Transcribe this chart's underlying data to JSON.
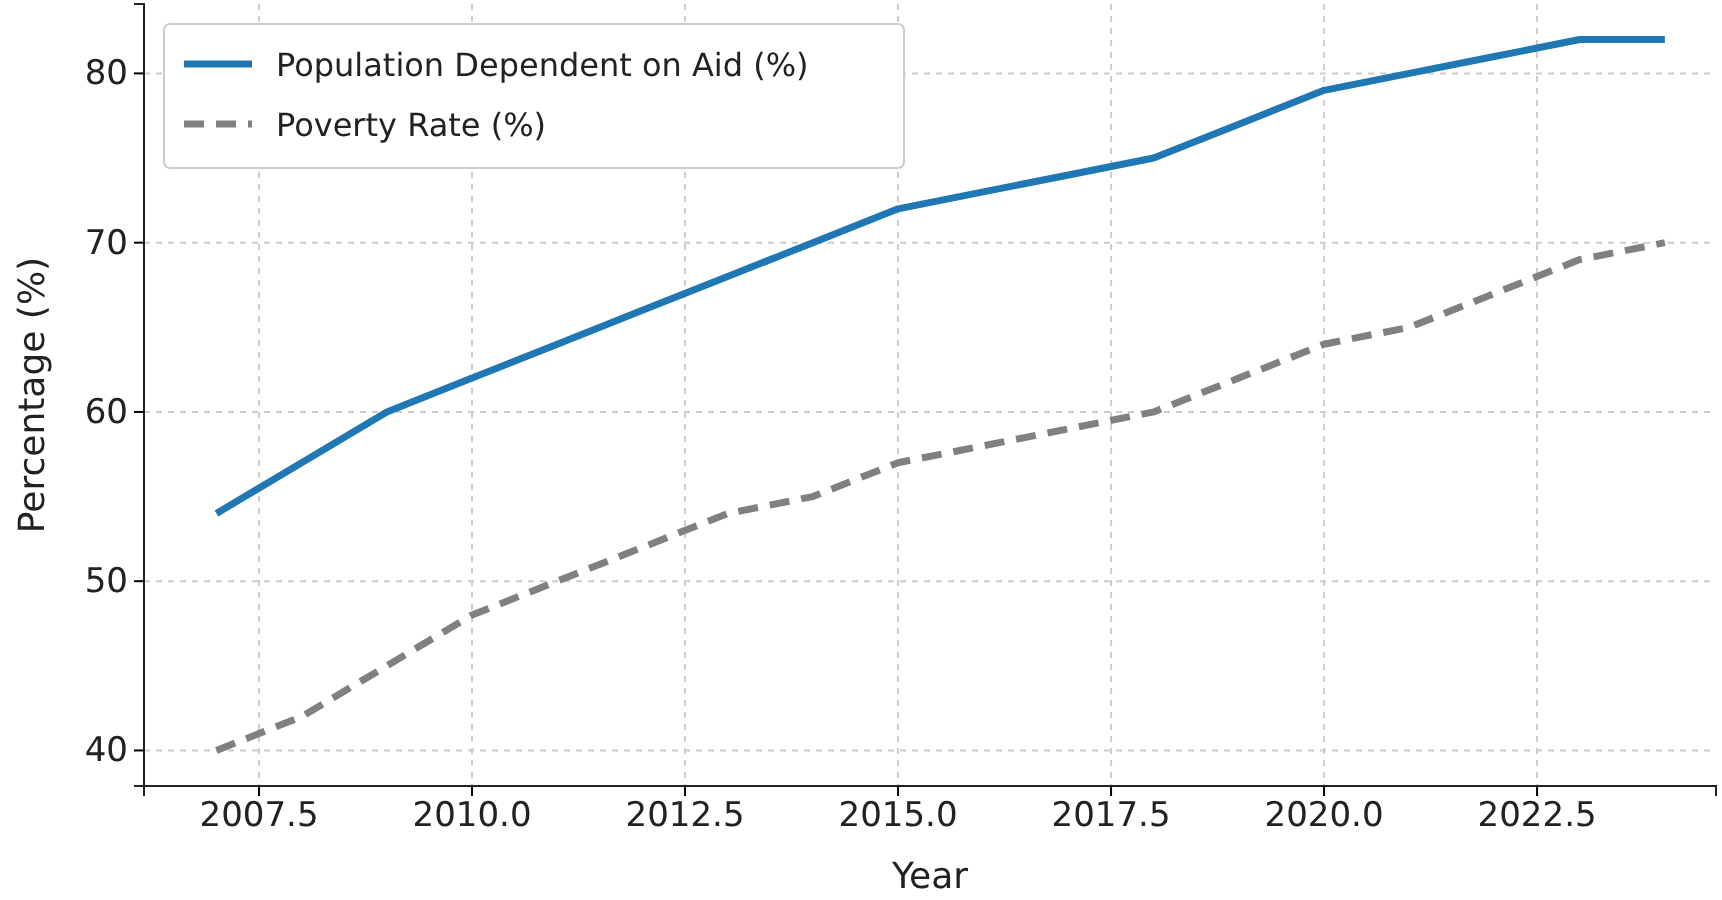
{
  "chart_data": {
    "type": "line",
    "xlabel": "Year",
    "ylabel": "Percentage (%)",
    "x": [
      2007,
      2008,
      2009,
      2010,
      2011,
      2012,
      2013,
      2014,
      2015,
      2016,
      2017,
      2018,
      2019,
      2020,
      2021,
      2022,
      2023,
      2024
    ],
    "series": [
      {
        "name": "Population Dependent on Aid (%)",
        "color": "#1f77b4",
        "line_style": "solid",
        "values": [
          54,
          57,
          60,
          62,
          64,
          66,
          68,
          70,
          72,
          73,
          74,
          75,
          77,
          79,
          80,
          81,
          82,
          82
        ]
      },
      {
        "name": "Poverty Rate (%)",
        "color": "#808080",
        "line_style": "dashed",
        "values": [
          40,
          42,
          45,
          48,
          50,
          52,
          54,
          55,
          57,
          58,
          59,
          60,
          62,
          64,
          65,
          67,
          69,
          70
        ]
      }
    ],
    "xlim": [
      2006.15,
      2024.6
    ],
    "ylim": [
      37.9,
      84.1
    ],
    "xticks": [
      {
        "value": 2007.5,
        "label": "2007.5"
      },
      {
        "value": 2010,
        "label": "2010.0"
      },
      {
        "value": 2012.5,
        "label": "2012.5"
      },
      {
        "value": 2015,
        "label": "2015.0"
      },
      {
        "value": 2017.5,
        "label": "2017.5"
      },
      {
        "value": 2020,
        "label": "2020.0"
      },
      {
        "value": 2022.5,
        "label": "2022.5"
      }
    ],
    "yticks": [
      40,
      50,
      60,
      70,
      80
    ],
    "grid": true,
    "legend": "top left",
    "marker": "none"
  }
}
